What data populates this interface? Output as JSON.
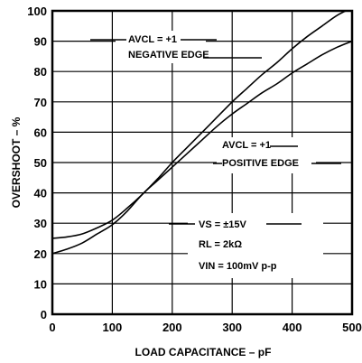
{
  "chart_data": {
    "type": "line",
    "xlabel": "LOAD CAPACITANCE – pF",
    "ylabel": "OVERSHOOT – %",
    "xlim": [
      0,
      500
    ],
    "ylim": [
      0,
      100
    ],
    "x_ticks": [
      0,
      100,
      200,
      300,
      400,
      500
    ],
    "y_ticks": [
      0,
      10,
      20,
      30,
      40,
      50,
      60,
      70,
      80,
      90,
      100
    ],
    "grid": true,
    "series": [
      {
        "name": "AVCL = +1 NEGATIVE EDGE",
        "x": [
          0,
          25,
          50,
          75,
          100,
          125,
          150,
          175,
          200,
          225,
          250,
          275,
          300,
          325,
          350,
          375,
          400,
          425,
          450,
          475,
          500
        ],
        "y": [
          25,
          25.5,
          26.5,
          28.5,
          31,
          35,
          39.5,
          44.5,
          50,
          55,
          60,
          65,
          70,
          74.5,
          79,
          83,
          87.5,
          91.5,
          95,
          98.5,
          101
        ]
      },
      {
        "name": "AVCL = +1 POSITIVE EDGE",
        "x": [
          0,
          25,
          50,
          75,
          100,
          125,
          150,
          175,
          200,
          225,
          250,
          275,
          300,
          325,
          350,
          375,
          400,
          425,
          450,
          475,
          500
        ],
        "y": [
          20,
          21.5,
          23.5,
          26.5,
          29.5,
          34,
          39.5,
          44,
          48.5,
          53,
          57.5,
          62,
          66,
          69.5,
          73,
          76,
          79.5,
          82.5,
          85.5,
          88,
          90
        ]
      }
    ],
    "annotations": [
      {
        "lines": [
          "AVCL = +1",
          "NEGATIVE EDGE"
        ]
      },
      {
        "lines": [
          "AVCL = +1",
          "POSITIVE EDGE"
        ]
      },
      {
        "lines": [
          "VS = ±15V",
          "RL = 2kΩ",
          "VIN = 100mV p-p"
        ]
      }
    ]
  }
}
